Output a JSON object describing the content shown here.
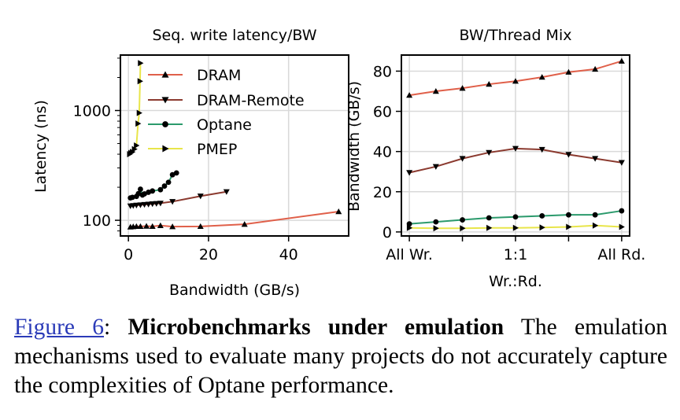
{
  "colors": {
    "DRAM": "#e0604a",
    "DRAM-Remote": "#8b3a2f",
    "Optane": "#2b9a6c",
    "PMEP": "#e8e54a",
    "marker": "#000000",
    "grid": "#d9d9d9"
  },
  "chart_data": [
    {
      "type": "scatter",
      "title": "Seq. write latency/BW",
      "xlabel": "Bandwidth (GB/s)",
      "ylabel": "Latency (ns)",
      "xlim": [
        -2,
        55
      ],
      "ylim": [
        72,
        3200
      ],
      "yscale": "log",
      "xticks": [
        0,
        20,
        40
      ],
      "yticks": [
        100,
        1000
      ],
      "grid": true,
      "legend": "top-left",
      "series": [
        {
          "name": "DRAM",
          "marker": "triangle-up",
          "x": [
            0.5,
            1.2,
            2,
            3,
            4.5,
            6,
            8,
            11,
            18,
            29,
            52.5
          ],
          "y": [
            87,
            87.5,
            88,
            88,
            88.5,
            88,
            89.5,
            87.5,
            88,
            92,
            120
          ]
        },
        {
          "name": "DRAM-Remote",
          "marker": "triangle-down",
          "x": [
            0.5,
            1.2,
            2,
            3,
            4,
            5,
            6,
            7,
            8,
            11,
            18,
            24.5
          ],
          "y": [
            135,
            136,
            137,
            138,
            139,
            140,
            141,
            142,
            143,
            148,
            166,
            182
          ]
        },
        {
          "name": "Optane",
          "marker": "circle",
          "x": [
            0.5,
            1,
            2,
            2.5,
            3,
            3.5,
            4,
            5,
            6,
            8,
            9,
            10,
            11,
            12
          ],
          "y": [
            160,
            162,
            165,
            175,
            192,
            170,
            174,
            180,
            185,
            190,
            205,
            222,
            260,
            270
          ]
        },
        {
          "name": "PMEP",
          "marker": "triangle-right",
          "x": [
            0.3,
            0.6,
            1,
            1.5,
            2,
            2.4,
            2.7,
            2.9,
            3
          ],
          "y": [
            400,
            410,
            420,
            445,
            480,
            760,
            950,
            1850,
            2700
          ]
        }
      ]
    },
    {
      "type": "line",
      "title": "BW/Thread Mix",
      "xlabel": "Wr.:Rd.",
      "ylabel": "Bandwidth (GB/s)",
      "xlim": [
        -0.3,
        8.3
      ],
      "ylim": [
        -2,
        88
      ],
      "xtick_positions": [
        0,
        4,
        8
      ],
      "xtick_labels": [
        "All Wr.",
        "1:1",
        "All Rd."
      ],
      "yticks": [
        0,
        20,
        40,
        60,
        80
      ],
      "grid": true,
      "x": [
        0,
        1,
        2,
        3,
        4,
        5,
        6,
        7,
        8
      ],
      "series": [
        {
          "name": "DRAM",
          "marker": "triangle-up",
          "values": [
            68,
            70,
            71.5,
            73.5,
            75,
            77,
            79.5,
            81,
            85
          ]
        },
        {
          "name": "DRAM-Remote",
          "marker": "triangle-down",
          "values": [
            29.5,
            32.5,
            36.5,
            39.5,
            41.5,
            41,
            38.5,
            36.5,
            34.5
          ]
        },
        {
          "name": "Optane",
          "marker": "circle",
          "values": [
            4,
            5,
            6,
            7,
            7.5,
            8,
            8.5,
            8.5,
            10.5
          ]
        },
        {
          "name": "PMEP",
          "marker": "triangle-right",
          "values": [
            2,
            1.8,
            1.8,
            2,
            2,
            2.2,
            2.5,
            3.2,
            2.5
          ]
        }
      ]
    }
  ],
  "caption": {
    "figure_ref": "Figure 6",
    "colon": ":",
    "bold_title": "Microbenchmarks under emulation",
    "text": "The emulation mechanisms used to evaluate many projects do not accurately capture the complexities of Optane performance."
  }
}
